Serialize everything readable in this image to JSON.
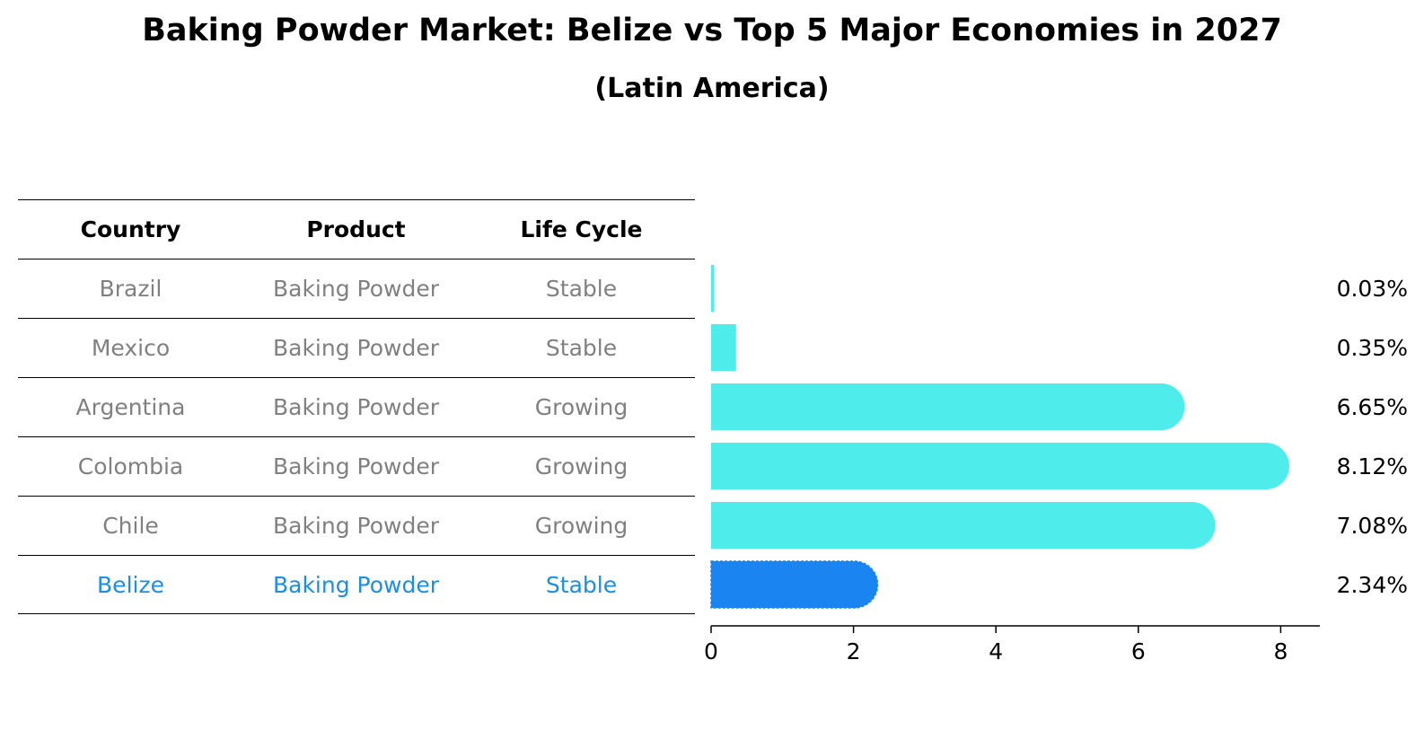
{
  "title": "Baking Powder Market: Belize vs Top 5 Major Economies in 2027",
  "subtitle": "(Latin America)",
  "table": {
    "headers": [
      "Country",
      "Product",
      "Life Cycle"
    ],
    "rows": [
      {
        "country": "Brazil",
        "product": "Baking Powder",
        "life_cycle": "Stable"
      },
      {
        "country": "Mexico",
        "product": "Baking Powder",
        "life_cycle": "Stable"
      },
      {
        "country": "Argentina",
        "product": "Baking Powder",
        "life_cycle": "Growing"
      },
      {
        "country": "Colombia",
        "product": "Baking Powder",
        "life_cycle": "Growing"
      },
      {
        "country": "Chile",
        "product": "Baking Powder",
        "life_cycle": "Growing"
      },
      {
        "country": "Belize",
        "product": "Baking Powder",
        "life_cycle": "Stable"
      }
    ]
  },
  "colors": {
    "bar": "#4eeceb",
    "highlight": "#1a85f0",
    "highlight_text": "#1a8fe3",
    "muted_text": "#808080"
  },
  "chart_data": {
    "type": "bar",
    "orientation": "horizontal",
    "categories": [
      "Brazil",
      "Mexico",
      "Argentina",
      "Colombia",
      "Chile",
      "Belize"
    ],
    "values": [
      0.03,
      0.35,
      6.65,
      8.12,
      7.08,
      2.34
    ],
    "value_labels": [
      "0.03%",
      "0.35%",
      "6.65%",
      "8.12%",
      "7.08%",
      "2.34%"
    ],
    "highlight": "Belize",
    "xticks": [
      0,
      2,
      4,
      6,
      8
    ],
    "xlim": [
      0,
      8.5
    ]
  }
}
